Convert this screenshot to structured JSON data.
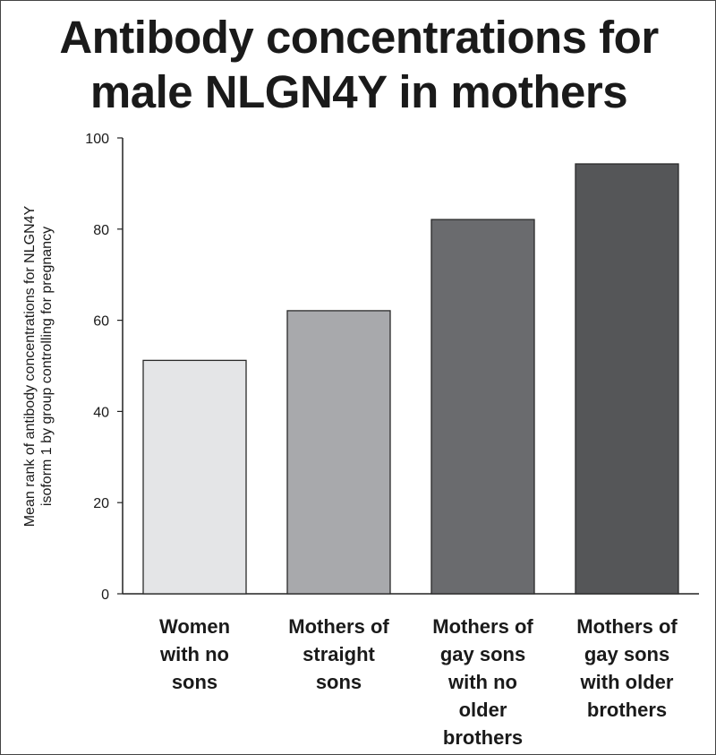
{
  "chart_data": {
    "type": "bar",
    "title_lines": [
      "Antibody concentrations for",
      "male NLGN4Y in mothers"
    ],
    "ylabel_lines": [
      "Mean rank of antibody concentrations for NLGN4Y",
      "isoform 1 by group controlling for pregnancy"
    ],
    "xlabel": "",
    "ylim": [
      0,
      100
    ],
    "yticks": [
      0,
      20,
      40,
      60,
      80,
      100
    ],
    "categories": [
      [
        "Women",
        "with no",
        "sons"
      ],
      [
        "Mothers of",
        "straight",
        "sons"
      ],
      [
        "Mothers of",
        "gay sons",
        "with no",
        "older",
        "brothers"
      ],
      [
        "Mothers of",
        "gay sons",
        "with older",
        "brothers"
      ]
    ],
    "values": [
      51.2,
      62.1,
      82.1,
      94.3
    ],
    "colors": [
      "#e4e5e7",
      "#a8a9ac",
      "#6a6b6e",
      "#555658"
    ],
    "grid": false,
    "legend": "none"
  }
}
